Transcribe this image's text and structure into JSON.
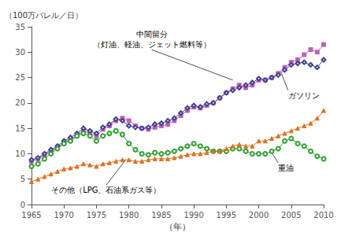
{
  "chart_data": {
    "type": "line",
    "xlabel": "（年）",
    "ylabel": "（100万バレル／日）",
    "xlim": [
      1965,
      2010
    ],
    "xticks": [
      1965,
      1970,
      1975,
      1980,
      1985,
      1990,
      1995,
      2000,
      2005,
      2010
    ],
    "ylim": [
      0,
      35
    ],
    "yticks": [
      0,
      5,
      10,
      15,
      20,
      25,
      30,
      35
    ],
    "grid": false,
    "x": [
      1965,
      1966,
      1967,
      1968,
      1969,
      1970,
      1971,
      1972,
      1973,
      1974,
      1975,
      1976,
      1977,
      1978,
      1979,
      1980,
      1981,
      1982,
      1983,
      1984,
      1985,
      1986,
      1987,
      1988,
      1989,
      1990,
      1991,
      1992,
      1993,
      1994,
      1995,
      1996,
      1997,
      1998,
      1999,
      2000,
      2001,
      2002,
      2003,
      2004,
      2005,
      2006,
      2007,
      2008,
      2009,
      2010
    ],
    "series": [
      {
        "color": "#c060b8",
        "marker": "square",
        "values": [
          8.5,
          9.0,
          9.8,
          10.5,
          11.2,
          12.2,
          12.8,
          13.5,
          14.5,
          14.0,
          13.5,
          14.8,
          15.5,
          16.5,
          17.0,
          16.5,
          15.5,
          15.0,
          14.8,
          15.2,
          15.5,
          15.8,
          16.5,
          17.5,
          18.5,
          19.2,
          19.0,
          19.5,
          20.0,
          21.0,
          22.0,
          22.8,
          23.5,
          23.0,
          23.5,
          24.5,
          24.5,
          25.0,
          25.8,
          27.0,
          28.0,
          28.5,
          29.5,
          30.5,
          30.0,
          31.5
        ]
      },
      {
        "color": "#404090",
        "marker": "diamond-open",
        "values": [
          8.8,
          9.2,
          10.0,
          10.8,
          11.5,
          12.5,
          13.2,
          14.0,
          15.0,
          14.5,
          14.0,
          15.2,
          15.8,
          16.8,
          16.5,
          15.5,
          15.2,
          15.0,
          15.2,
          15.8,
          16.0,
          16.5,
          17.0,
          18.0,
          19.0,
          19.5,
          19.2,
          19.8,
          20.0,
          21.0,
          22.0,
          22.5,
          23.0,
          23.5,
          24.0,
          24.8,
          24.5,
          25.0,
          25.5,
          26.5,
          27.5,
          27.8,
          28.0,
          27.5,
          27.0,
          28.5
        ]
      },
      {
        "color": "#30a030",
        "marker": "circle-open",
        "values": [
          7.5,
          8.0,
          9.0,
          10.0,
          11.0,
          12.0,
          12.5,
          13.5,
          14.0,
          13.5,
          12.5,
          13.5,
          14.0,
          14.5,
          13.8,
          12.0,
          10.8,
          10.0,
          9.8,
          10.2,
          10.0,
          10.2,
          10.5,
          11.0,
          11.5,
          12.0,
          11.5,
          11.0,
          10.5,
          10.5,
          10.5,
          11.0,
          11.0,
          10.5,
          10.0,
          10.0,
          10.0,
          10.5,
          11.0,
          12.5,
          13.0,
          12.0,
          11.5,
          10.5,
          9.5,
          9.0
        ]
      },
      {
        "color": "#e07020",
        "marker": "triangle",
        "values": [
          4.5,
          5.0,
          5.5,
          6.0,
          6.5,
          7.0,
          7.2,
          7.5,
          8.0,
          7.8,
          7.5,
          8.0,
          8.2,
          8.5,
          8.8,
          8.8,
          8.5,
          8.5,
          8.8,
          9.0,
          9.0,
          9.0,
          9.2,
          9.5,
          9.8,
          10.0,
          10.0,
          10.2,
          10.5,
          10.5,
          11.0,
          11.5,
          11.8,
          11.5,
          11.5,
          12.5,
          12.5,
          13.0,
          13.5,
          14.0,
          14.5,
          15.0,
          15.5,
          16.0,
          17.0,
          18.5
        ]
      }
    ],
    "annotations": [
      {
        "text": "中間留分\n（灯油、軽油、ジェット燃料等）",
        "x": 1996,
        "y": 24.5,
        "text_x": 1983.5,
        "text_y": 32.5
      },
      {
        "text": "ガソリン",
        "x": 2003.5,
        "y": 25.8,
        "text_x": 2004.5,
        "text_y": 22.5
      },
      {
        "text": "重油",
        "x": 2002,
        "y": 10.2,
        "text_x": 2003,
        "text_y": 8.2
      },
      {
        "text": "その他（LPG、石油系ガス等）",
        "x": 1979.5,
        "y": 8.8,
        "text_x": 1976.5,
        "text_y": 3.8
      }
    ]
  }
}
